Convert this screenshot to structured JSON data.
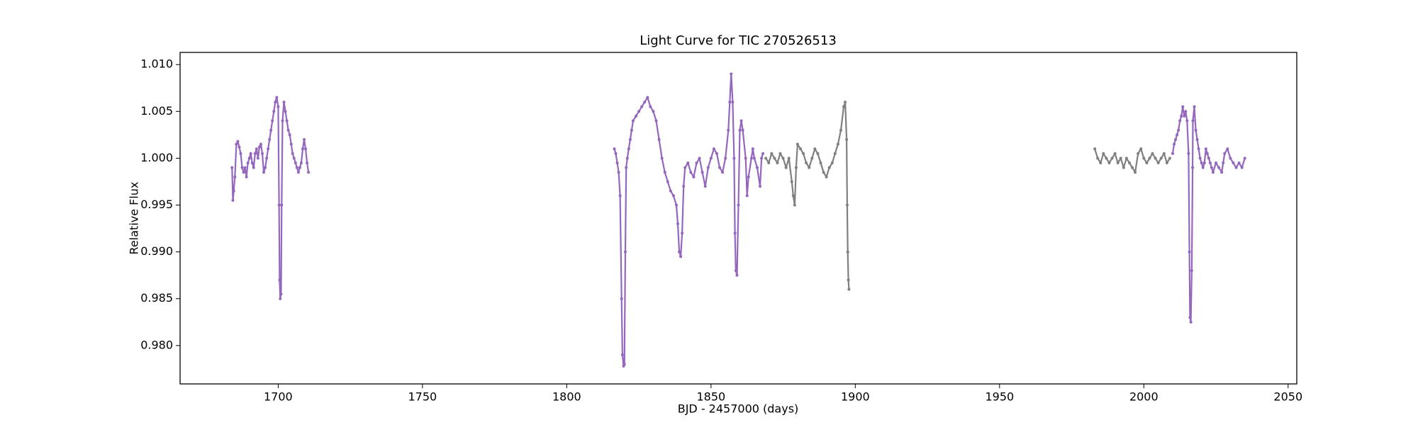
{
  "chart_data": {
    "type": "scatter",
    "title": "Light Curve for TIC 270526513",
    "xlabel": "BJD - 2457000 (days)",
    "ylabel": "Relative Flux",
    "xlim": [
      1666,
      2053
    ],
    "ylim": [
      0.9759,
      1.0113
    ],
    "xticks": [
      1700,
      1750,
      1800,
      1850,
      1900,
      1950,
      2000,
      2050
    ],
    "yticks": [
      {
        "value": 0.98,
        "label": "0.980"
      },
      {
        "value": 0.985,
        "label": "0.985"
      },
      {
        "value": 0.99,
        "label": "0.990"
      },
      {
        "value": 0.995,
        "label": "0.995"
      },
      {
        "value": 1.0,
        "label": "1.000"
      },
      {
        "value": 1.005,
        "label": "1.005"
      },
      {
        "value": 1.01,
        "label": "1.010"
      }
    ],
    "series": [
      {
        "color": "#9467bd",
        "x": [
          1684,
          1684.3,
          1684.6,
          1685,
          1685.5,
          1686,
          1686.5,
          1687,
          1687.5,
          1688,
          1688.5,
          1689,
          1689.5,
          1690,
          1690.5,
          1691,
          1691.5,
          1692,
          1692.5,
          1693,
          1693.5,
          1694,
          1694.5,
          1695,
          1695.5,
          1696,
          1696.5,
          1697,
          1697.5,
          1698,
          1698.5,
          1699,
          1699.5,
          1700,
          1700.3,
          1700.5,
          1700.7,
          1701,
          1701.2,
          1701.5,
          1702,
          1702.5,
          1703,
          1703.5,
          1704,
          1704.5,
          1705,
          1705.5,
          1706,
          1706.5,
          1707,
          1707.5,
          1708,
          1708.5,
          1709,
          1709.5,
          1710,
          1710.5
        ],
        "values": [
          0.999,
          0.9955,
          0.9965,
          0.998,
          1.0015,
          1.0018,
          1.0012,
          1.0005,
          0.999,
          0.9985,
          0.999,
          0.998,
          0.9995,
          1.0,
          1.0005,
          0.9995,
          0.999,
          1.0005,
          1.001,
          1.0,
          1.0012,
          1.0015,
          1.0005,
          0.9985,
          0.999,
          1.0,
          1.001,
          1.002,
          1.003,
          1.004,
          1.005,
          1.006,
          1.0065,
          1.0055,
          0.995,
          0.987,
          0.985,
          0.9855,
          0.995,
          1.004,
          1.006,
          1.005,
          1.004,
          1.003,
          1.0025,
          1.0015,
          1.0005,
          1.0,
          0.9995,
          0.999,
          0.9985,
          0.999,
          0.9995,
          1.001,
          1.002,
          1.001,
          0.9995,
          0.9985
        ]
      },
      {
        "color": "#9467bd",
        "x": [
          1816.5,
          1817,
          1817.5,
          1818,
          1818.5,
          1819,
          1819.3,
          1819.7,
          1820,
          1820.3,
          1820.6,
          1821,
          1821.5,
          1822,
          1822.5,
          1823,
          1824,
          1825,
          1826,
          1827,
          1828,
          1829,
          1830,
          1831,
          1832,
          1833,
          1834,
          1835,
          1836,
          1837,
          1838,
          1838.5,
          1839,
          1839.5,
          1840,
          1840.5,
          1841,
          1842,
          1843,
          1844,
          1845,
          1846,
          1847,
          1848,
          1849,
          1850,
          1851,
          1852,
          1853,
          1854,
          1855,
          1856,
          1856.5,
          1857,
          1857.5,
          1858,
          1858.3,
          1858.6,
          1859,
          1859.5,
          1860,
          1860.5,
          1861,
          1862,
          1862.5,
          1863,
          1864,
          1864.5,
          1865,
          1866,
          1867,
          1867.5,
          1868
        ],
        "values": [
          1.001,
          1.0005,
          0.9995,
          0.9985,
          0.996,
          0.985,
          0.979,
          0.9778,
          0.978,
          0.99,
          0.999,
          1.0,
          1.001,
          1.002,
          1.003,
          1.004,
          1.0045,
          1.005,
          1.0055,
          1.006,
          1.0065,
          1.0055,
          1.005,
          1.004,
          1.002,
          1.0,
          0.9985,
          0.9975,
          0.9965,
          0.996,
          0.995,
          0.993,
          0.99,
          0.9895,
          0.992,
          0.997,
          0.999,
          0.9995,
          0.9985,
          0.998,
          0.9995,
          1.0,
          0.9985,
          0.997,
          0.999,
          1.0,
          1.001,
          1.0005,
          0.999,
          0.9985,
          1.0,
          1.003,
          1.006,
          1.009,
          1.006,
          1.0,
          0.992,
          0.988,
          0.9875,
          0.995,
          1.003,
          1.004,
          1.003,
          1.0,
          0.996,
          0.998,
          1.0,
          1.001,
          1.0,
          0.999,
          0.997,
          1.0,
          1.0005
        ]
      },
      {
        "color": "#7f7f7f",
        "x": [
          1869,
          1870,
          1871,
          1872,
          1873,
          1874,
          1875,
          1876,
          1877,
          1878,
          1878.5,
          1879,
          1879.5,
          1880,
          1881,
          1882,
          1883,
          1884,
          1885,
          1886,
          1887,
          1888,
          1889,
          1890,
          1891,
          1892,
          1893,
          1894,
          1895,
          1896,
          1896.5,
          1897,
          1897.2,
          1897.4,
          1897.6,
          1897.8
        ],
        "values": [
          1.0,
          0.9995,
          1.0005,
          1.0,
          0.9995,
          1.0005,
          1.0,
          0.999,
          1.0,
          0.9975,
          0.996,
          0.995,
          0.999,
          1.0015,
          1.001,
          1.0005,
          0.9995,
          0.999,
          1.0,
          1.001,
          1.0005,
          0.9995,
          0.9985,
          0.998,
          0.999,
          0.9995,
          1.0005,
          1.0015,
          1.003,
          1.0055,
          1.006,
          1.002,
          0.995,
          0.99,
          0.987,
          0.986
        ]
      },
      {
        "color": "#7f7f7f",
        "x": [
          1983,
          1984,
          1985,
          1986,
          1987,
          1988,
          1989,
          1990,
          1991,
          1992,
          1993,
          1994,
          1995,
          1996,
          1997,
          1998,
          1999,
          2000,
          2001,
          2002,
          2003,
          2004,
          2005,
          2006,
          2007,
          2008,
          2009
        ],
        "values": [
          1.001,
          1.0,
          0.9995,
          1.0005,
          1.0,
          0.9995,
          1.0,
          1.0005,
          0.9995,
          1.0,
          0.999,
          1.0,
          0.9995,
          0.999,
          0.9985,
          1.0005,
          1.001,
          1.0,
          0.9995,
          1.0,
          1.0005,
          1.0,
          0.9995,
          1.0,
          1.0005,
          0.9995,
          1.0
        ]
      },
      {
        "color": "#9467bd",
        "x": [
          2010,
          2010.5,
          2011,
          2011.5,
          2012,
          2012.5,
          2013,
          2013.5,
          2014,
          2014.5,
          2015,
          2015.5,
          2015.8,
          2016,
          2016.3,
          2016.6,
          2016.9,
          2017,
          2017.5,
          2018,
          2018.5,
          2019,
          2019.5,
          2020,
          2020.5,
          2021,
          2021.5,
          2022,
          2022.5,
          2023,
          2023.5,
          2024,
          2025,
          2026,
          2027,
          2027.5,
          2028,
          2029,
          2030,
          2031,
          2032,
          2033,
          2034,
          2035
        ],
        "values": [
          1.0005,
          1.0015,
          1.002,
          1.0025,
          1.003,
          1.004,
          1.0045,
          1.0055,
          1.0045,
          1.005,
          1.004,
          1.0005,
          0.99,
          0.983,
          0.9825,
          0.988,
          0.999,
          1.004,
          1.0055,
          1.003,
          1.002,
          1.001,
          1.0,
          0.9995,
          0.999,
          0.9995,
          1.001,
          1.0005,
          1.0,
          0.9995,
          0.999,
          0.9985,
          0.9995,
          0.999,
          0.9985,
          0.9995,
          1.0005,
          1.001,
          1.0,
          0.9995,
          0.999,
          0.9995,
          0.999,
          1.0
        ]
      }
    ]
  }
}
